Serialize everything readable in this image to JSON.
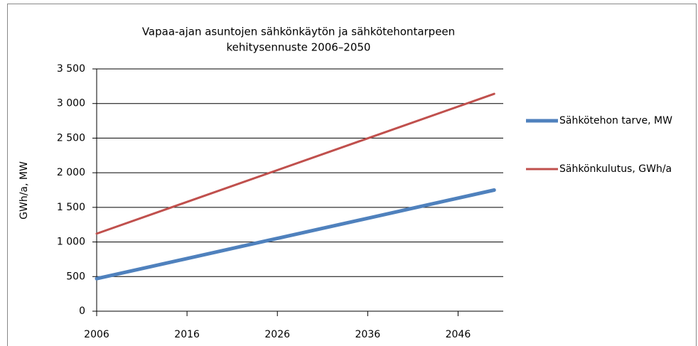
{
  "chart_data": {
    "type": "line",
    "title": [
      "Vapaa-ajan asuntojen sähkönkäytön ja sähkötehontarpeen",
      "kehitysennuste 2006–2050"
    ],
    "y_label": "GWh/a, MW",
    "x": [
      2006,
      2050
    ],
    "series": [
      {
        "name": "Sähkötehon tarve, MW",
        "color": "#4f81bd",
        "values": [
          470,
          1750
        ]
      },
      {
        "name": "Sähkönkulutus, GWh/a",
        "color": "#c0504d",
        "values": [
          1120,
          3140
        ]
      }
    ],
    "xlim": [
      2006,
      2051
    ],
    "xticks": [
      2006,
      2016,
      2026,
      2036,
      2046
    ],
    "ylim": [
      0,
      3500
    ],
    "yticks": [
      0,
      500,
      {
        "value": 1000,
        "label": "1 000"
      },
      {
        "value": 1500,
        "label": "1 500"
      },
      {
        "value": 2000,
        "label": "2 000"
      },
      {
        "value": 2500,
        "label": "2 500"
      },
      {
        "value": 3000,
        "label": "3 000"
      },
      {
        "value": 3500,
        "label": "3 500"
      }
    ],
    "grid": true,
    "legend": "right"
  }
}
